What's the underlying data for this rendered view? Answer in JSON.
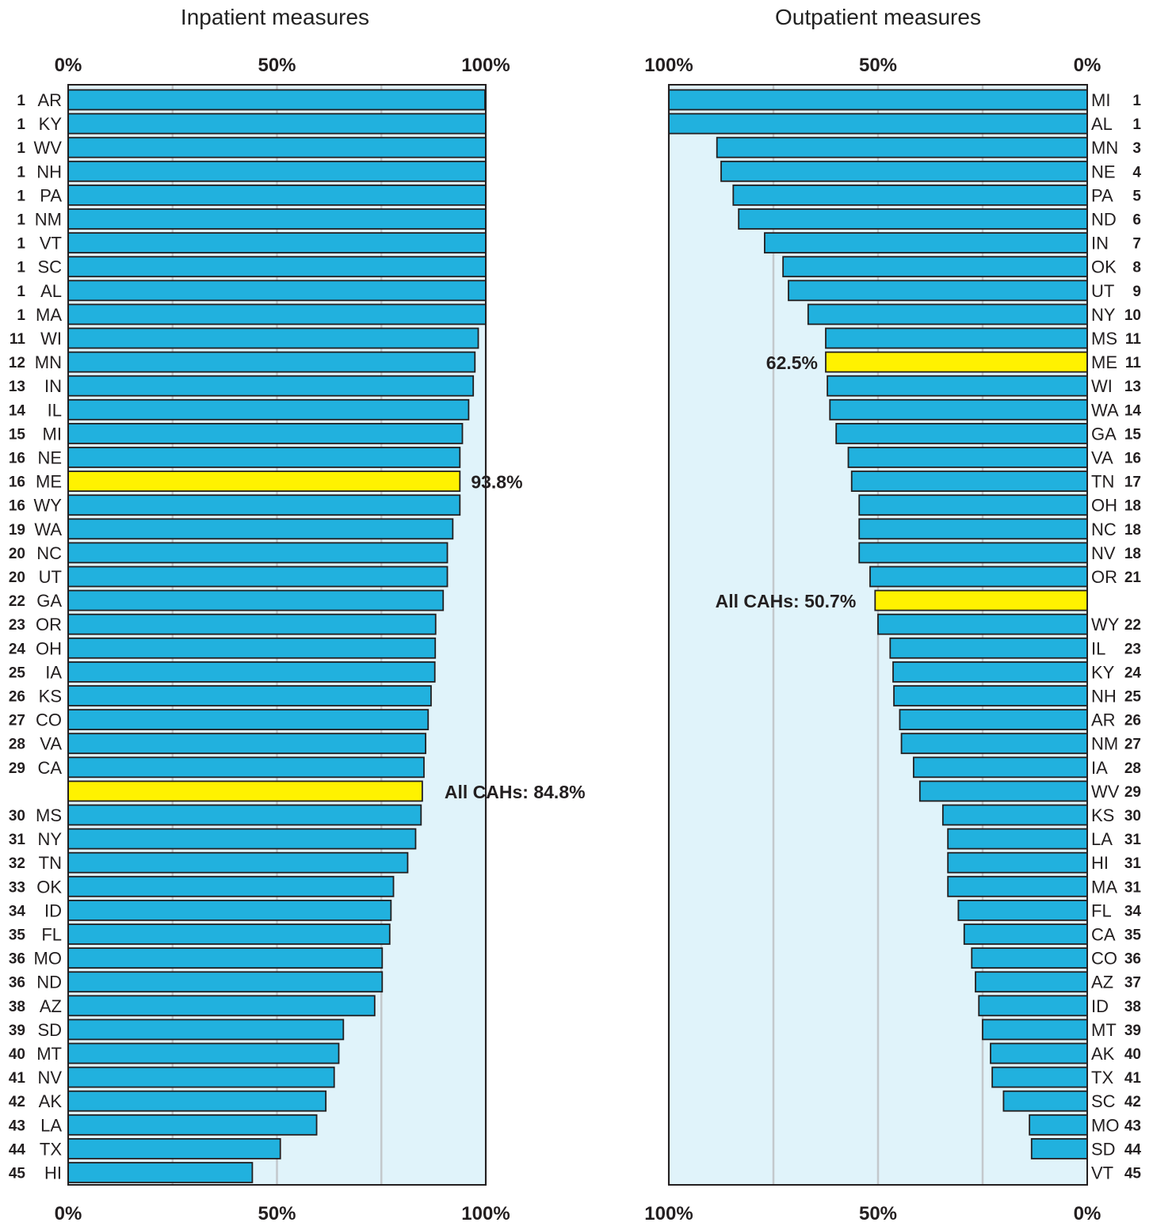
{
  "colors": {
    "bar": "#21b1de",
    "highlight": "#fff200",
    "panel_bg": "#e0f3fa",
    "gridline": "#c3c8cc",
    "outline": "#231f20"
  },
  "chart_data": [
    {
      "type": "bar",
      "orientation": "horizontal",
      "title": "Inpatient measures",
      "xlim": [
        0,
        100
      ],
      "x_ticks": [
        "0%",
        "50%",
        "100%"
      ],
      "gridlines": [
        25,
        50,
        75
      ],
      "highlight_labels": [
        {
          "row": 16,
          "text": "93.8%"
        },
        {
          "row": 29,
          "text": "All CAHs: 84.8%"
        }
      ],
      "rows": [
        {
          "rank": "1",
          "state": "AR",
          "value": 99.8
        },
        {
          "rank": "1",
          "state": "KY",
          "value": 100
        },
        {
          "rank": "1",
          "state": "WV",
          "value": 100
        },
        {
          "rank": "1",
          "state": "NH",
          "value": 100
        },
        {
          "rank": "1",
          "state": "PA",
          "value": 100
        },
        {
          "rank": "1",
          "state": "NM",
          "value": 100
        },
        {
          "rank": "1",
          "state": "VT",
          "value": 100
        },
        {
          "rank": "1",
          "state": "SC",
          "value": 100
        },
        {
          "rank": "1",
          "state": "AL",
          "value": 100
        },
        {
          "rank": "1",
          "state": "MA",
          "value": 100
        },
        {
          "rank": "11",
          "state": "WI",
          "value": 98.2
        },
        {
          "rank": "12",
          "state": "MN",
          "value": 97.4
        },
        {
          "rank": "13",
          "state": "IN",
          "value": 97.0
        },
        {
          "rank": "14",
          "state": "IL",
          "value": 95.9
        },
        {
          "rank": "15",
          "state": "MI",
          "value": 94.4
        },
        {
          "rank": "16",
          "state": "NE",
          "value": 93.8
        },
        {
          "rank": "16",
          "state": "ME",
          "value": 93.8,
          "highlight": true
        },
        {
          "rank": "16",
          "state": "WY",
          "value": 93.8
        },
        {
          "rank": "19",
          "state": "WA",
          "value": 92.1
        },
        {
          "rank": "20",
          "state": "NC",
          "value": 90.8
        },
        {
          "rank": "20",
          "state": "UT",
          "value": 90.8
        },
        {
          "rank": "22",
          "state": "GA",
          "value": 89.8
        },
        {
          "rank": "23",
          "state": "OR",
          "value": 88.0
        },
        {
          "rank": "24",
          "state": "OH",
          "value": 87.9
        },
        {
          "rank": "25",
          "state": "IA",
          "value": 87.8
        },
        {
          "rank": "26",
          "state": "KS",
          "value": 86.9
        },
        {
          "rank": "27",
          "state": "CO",
          "value": 86.2
        },
        {
          "rank": "28",
          "state": "VA",
          "value": 85.6
        },
        {
          "rank": "29",
          "state": "CA",
          "value": 85.2
        },
        {
          "rank": "",
          "state": "",
          "value": 84.8,
          "highlight": true
        },
        {
          "rank": "30",
          "state": "MS",
          "value": 84.5
        },
        {
          "rank": "31",
          "state": "NY",
          "value": 83.2
        },
        {
          "rank": "32",
          "state": "TN",
          "value": 81.3
        },
        {
          "rank": "33",
          "state": "OK",
          "value": 77.9
        },
        {
          "rank": "34",
          "state": "ID",
          "value": 77.3
        },
        {
          "rank": "35",
          "state": "FL",
          "value": 77.0
        },
        {
          "rank": "36",
          "state": "MO",
          "value": 75.2
        },
        {
          "rank": "36",
          "state": "ND",
          "value": 75.2
        },
        {
          "rank": "38",
          "state": "AZ",
          "value": 73.4
        },
        {
          "rank": "39",
          "state": "SD",
          "value": 65.9
        },
        {
          "rank": "40",
          "state": "MT",
          "value": 64.8
        },
        {
          "rank": "41",
          "state": "NV",
          "value": 63.7
        },
        {
          "rank": "42",
          "state": "AK",
          "value": 61.7
        },
        {
          "rank": "43",
          "state": "LA",
          "value": 59.5
        },
        {
          "rank": "44",
          "state": "TX",
          "value": 50.8
        },
        {
          "rank": "45",
          "state": "HI",
          "value": 44.1
        }
      ]
    },
    {
      "type": "bar",
      "orientation": "horizontal",
      "direction": "right-to-left",
      "title": "Outpatient measures",
      "xlim": [
        100,
        0
      ],
      "x_ticks": [
        "100%",
        "50%",
        "0%"
      ],
      "gridlines": [
        75,
        50,
        25
      ],
      "highlight_labels": [
        {
          "row": 11,
          "text": "62.5%"
        },
        {
          "row": 21,
          "text": "All CAHs: 50.7%"
        }
      ],
      "rows": [
        {
          "rank": "1",
          "state": "MI",
          "value": 100
        },
        {
          "rank": "1",
          "state": "AL",
          "value": 100
        },
        {
          "rank": "3",
          "state": "MN",
          "value": 88.5
        },
        {
          "rank": "4",
          "state": "NE",
          "value": 87.5
        },
        {
          "rank": "5",
          "state": "PA",
          "value": 84.6
        },
        {
          "rank": "6",
          "state": "ND",
          "value": 83.3
        },
        {
          "rank": "7",
          "state": "IN",
          "value": 77.1
        },
        {
          "rank": "8",
          "state": "OK",
          "value": 72.7
        },
        {
          "rank": "9",
          "state": "UT",
          "value": 71.4
        },
        {
          "rank": "10",
          "state": "NY",
          "value": 66.7
        },
        {
          "rank": "11",
          "state": "MS",
          "value": 62.5
        },
        {
          "rank": "11",
          "state": "ME",
          "value": 62.5,
          "highlight": true
        },
        {
          "rank": "13",
          "state": "WI",
          "value": 62.1
        },
        {
          "rank": "14",
          "state": "WA",
          "value": 61.5
        },
        {
          "rank": "15",
          "state": "GA",
          "value": 60.0
        },
        {
          "rank": "16",
          "state": "VA",
          "value": 57.1
        },
        {
          "rank": "17",
          "state": "TN",
          "value": 56.3
        },
        {
          "rank": "18",
          "state": "OH",
          "value": 54.5
        },
        {
          "rank": "18",
          "state": "NC",
          "value": 54.5
        },
        {
          "rank": "18",
          "state": "NV",
          "value": 54.5
        },
        {
          "rank": "21",
          "state": "OR",
          "value": 51.9
        },
        {
          "rank": "",
          "state": "",
          "value": 50.7,
          "highlight": true
        },
        {
          "rank": "22",
          "state": "WY",
          "value": 50.0
        },
        {
          "rank": "23",
          "state": "IL",
          "value": 47.1
        },
        {
          "rank": "24",
          "state": "KY",
          "value": 46.4
        },
        {
          "rank": "25",
          "state": "NH",
          "value": 46.2
        },
        {
          "rank": "26",
          "state": "AR",
          "value": 44.8
        },
        {
          "rank": "27",
          "state": "NM",
          "value": 44.4
        },
        {
          "rank": "28",
          "state": "IA",
          "value": 41.5
        },
        {
          "rank": "29",
          "state": "WV",
          "value": 40.0
        },
        {
          "rank": "30",
          "state": "KS",
          "value": 34.5
        },
        {
          "rank": "31",
          "state": "LA",
          "value": 33.3
        },
        {
          "rank": "31",
          "state": "HI",
          "value": 33.3
        },
        {
          "rank": "31",
          "state": "MA",
          "value": 33.3
        },
        {
          "rank": "34",
          "state": "FL",
          "value": 30.8
        },
        {
          "rank": "35",
          "state": "CA",
          "value": 29.4
        },
        {
          "rank": "36",
          "state": "CO",
          "value": 27.6
        },
        {
          "rank": "37",
          "state": "AZ",
          "value": 26.7
        },
        {
          "rank": "38",
          "state": "ID",
          "value": 25.9
        },
        {
          "rank": "39",
          "state": "MT",
          "value": 25.0
        },
        {
          "rank": "40",
          "state": "AK",
          "value": 23.1
        },
        {
          "rank": "41",
          "state": "TX",
          "value": 22.7
        },
        {
          "rank": "42",
          "state": "SC",
          "value": 20.0
        },
        {
          "rank": "43",
          "state": "MO",
          "value": 13.8
        },
        {
          "rank": "44",
          "state": "SD",
          "value": 13.3
        },
        {
          "rank": "45",
          "state": "VT",
          "value": 0
        }
      ]
    }
  ]
}
